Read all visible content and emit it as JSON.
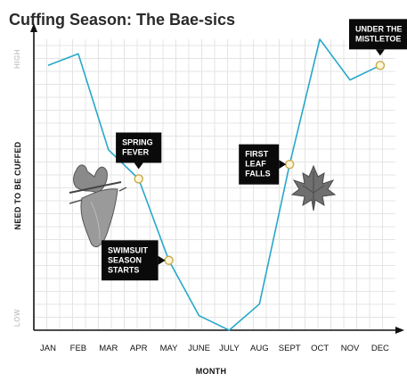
{
  "chart_data": {
    "type": "line",
    "title": "Cuffing Season: The Bae-sics",
    "xlabel": "MONTH",
    "ylabel": "NEED TO BE CUFFED",
    "y_tick_labels": {
      "high": "HIGH",
      "low": "LOW"
    },
    "categories": [
      "JAN",
      "FEB",
      "MAR",
      "APR",
      "MAY",
      "JUNE",
      "JULY",
      "AUG",
      "SEPT",
      "OCT",
      "NOV",
      "DEC"
    ],
    "values": [
      0.91,
      0.95,
      0.62,
      0.52,
      0.24,
      0.05,
      0.0,
      0.09,
      0.57,
      1.0,
      0.86,
      0.91
    ],
    "ylim": [
      0,
      1
    ],
    "grid": true,
    "line_color": "#27a8c9",
    "marker_fill": "#fff7d6",
    "marker_stroke": "#c8a84a",
    "annotations": [
      {
        "month": "MAY",
        "y": 0.24,
        "lines": [
          "SWIMSUIT",
          "SEASON",
          "STARTS"
        ],
        "box_side": "left"
      },
      {
        "month": "APR",
        "y": 0.52,
        "lines": [
          "SPRING",
          "FEVER"
        ],
        "box_side": "above"
      },
      {
        "month": "SEPT",
        "y": 0.57,
        "lines": [
          "FIRST",
          "LEAF",
          "FALLS"
        ],
        "box_side": "left"
      },
      {
        "month": "DEC",
        "y": 0.91,
        "lines": [
          "UNDER THE",
          "MISTLETOE"
        ],
        "box_side": "above"
      }
    ],
    "illustrations": [
      "bikini-image",
      "maple-leaf-image"
    ]
  }
}
